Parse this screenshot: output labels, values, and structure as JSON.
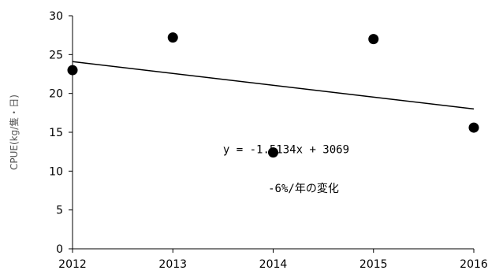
{
  "chart_data": {
    "type": "scatter",
    "title": "",
    "xlabel": "",
    "ylabel": "CPUE(kg/隻・日)",
    "x": [
      2012,
      2013,
      2014,
      2015,
      2016
    ],
    "y": [
      23.0,
      27.2,
      12.4,
      27.0,
      15.6
    ],
    "xlim": [
      2012,
      2016
    ],
    "ylim": [
      0,
      30
    ],
    "xticks": [
      2012,
      2013,
      2014,
      2015,
      2016
    ],
    "yticks": [
      0,
      5,
      10,
      15,
      20,
      25,
      30
    ],
    "grid": false,
    "trendline": {
      "type": "linear",
      "start": [
        2012,
        24.1
      ],
      "end": [
        2016,
        18.0
      ]
    },
    "annotations": [
      {
        "text": "y = -1.5134x + 3069",
        "x": 2013.5,
        "y": 12.3
      },
      {
        "text": "-6%/年の変化",
        "x": 2013.95,
        "y": 7.3
      }
    ]
  }
}
